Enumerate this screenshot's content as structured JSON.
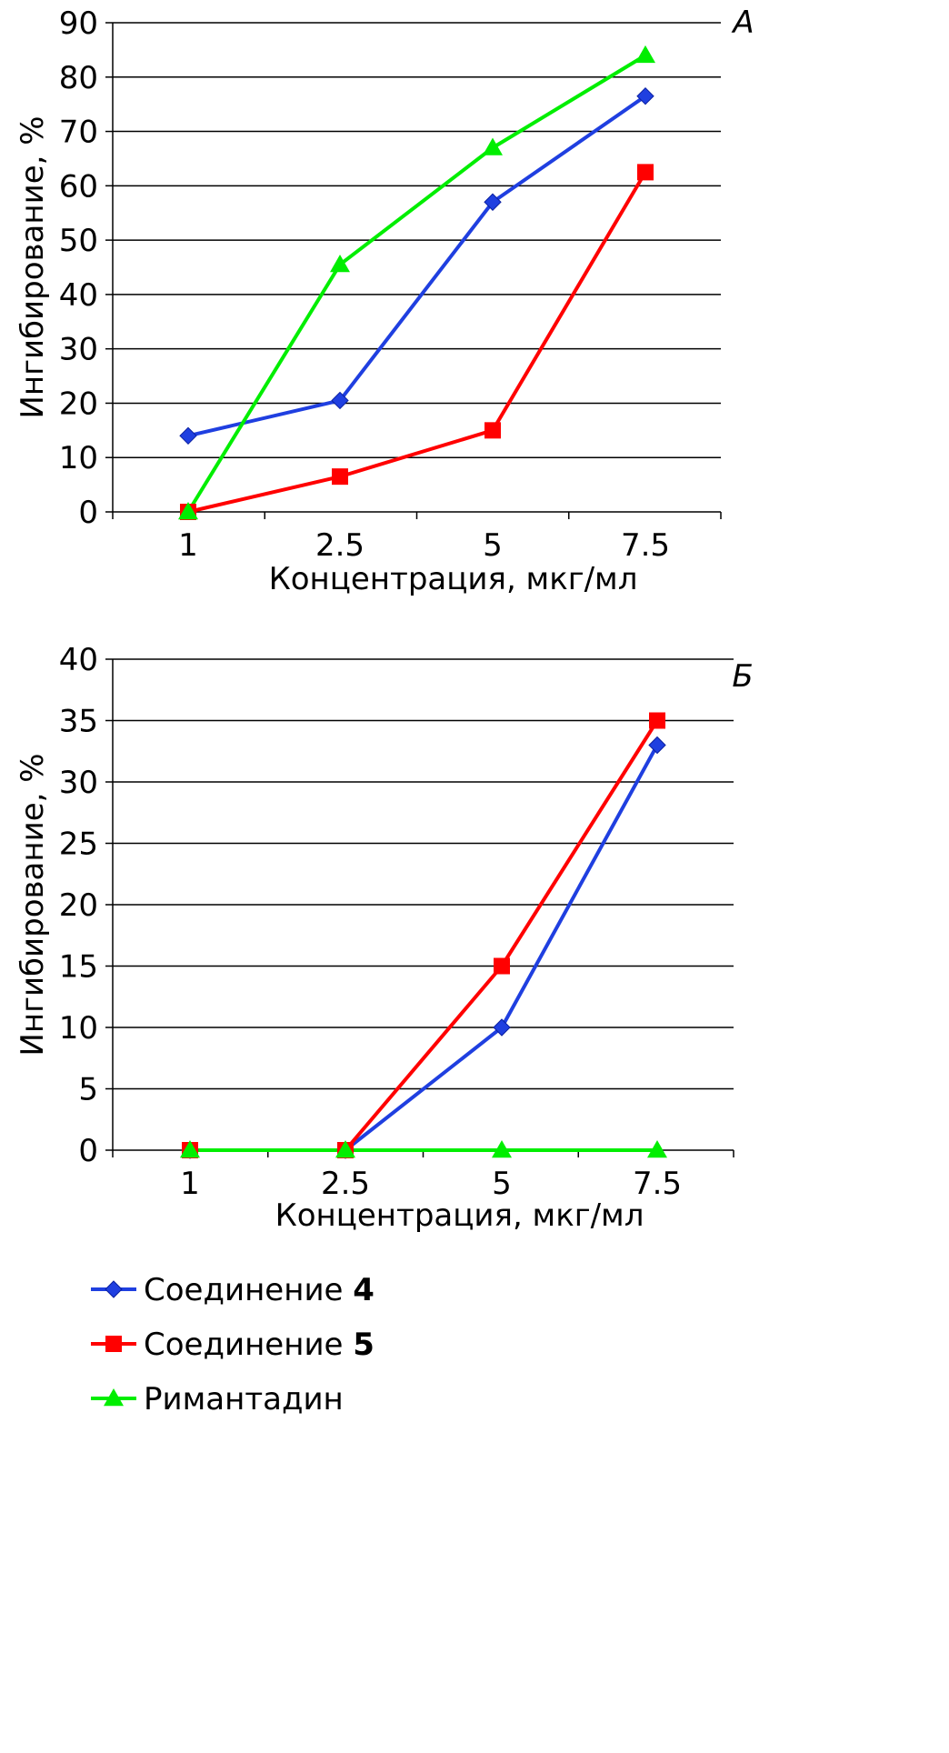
{
  "colors": {
    "compound4": "#1f3fe0",
    "compound5": "#ff0000",
    "rimantadine": "#00ee00",
    "grid": "#000000"
  },
  "legend": [
    {
      "name_prefix": "Соединение ",
      "name_bold": "4",
      "color": "#1f3fe0",
      "marker": "diamond"
    },
    {
      "name_prefix": "Соединение ",
      "name_bold": "5",
      "color": "#ff0000",
      "marker": "square"
    },
    {
      "name_prefix": "Римантадин",
      "name_bold": "",
      "color": "#00ee00",
      "marker": "triangle"
    }
  ],
  "chart_data": [
    {
      "type": "line",
      "panel": "А",
      "categories": [
        "1",
        "2.5",
        "5",
        "7.5"
      ],
      "xlabel": "Концентрация, мкг/мл",
      "ylabel": "Ингибирование, %",
      "ylim": [
        0,
        90
      ],
      "yticks": [
        0,
        10,
        20,
        30,
        40,
        50,
        60,
        70,
        80,
        90
      ],
      "grid": true,
      "series": [
        {
          "name": "Соединение 4",
          "color": "#1f3fe0",
          "marker": "diamond",
          "values": [
            14,
            20.5,
            57,
            76.5
          ]
        },
        {
          "name": "Соединение 5",
          "color": "#ff0000",
          "marker": "square",
          "values": [
            0,
            6.5,
            15,
            62.5
          ]
        },
        {
          "name": "Римантадин",
          "color": "#00ee00",
          "marker": "triangle",
          "values": [
            0,
            45.5,
            67,
            84
          ]
        }
      ]
    },
    {
      "type": "line",
      "panel": "Б",
      "categories": [
        "1",
        "2.5",
        "5",
        "7.5"
      ],
      "xlabel": "Концентрация, мкг/мл",
      "ylabel": "Ингибирование, %",
      "ylim": [
        0,
        40
      ],
      "yticks": [
        0,
        5,
        10,
        15,
        20,
        25,
        30,
        35,
        40
      ],
      "grid": true,
      "series": [
        {
          "name": "Соединение 4",
          "color": "#1f3fe0",
          "marker": "diamond",
          "values": [
            0,
            0,
            10,
            33
          ]
        },
        {
          "name": "Соединение 5",
          "color": "#ff0000",
          "marker": "square",
          "values": [
            0,
            0,
            15,
            35
          ]
        },
        {
          "name": "Римантадин",
          "color": "#00ee00",
          "marker": "triangle",
          "values": [
            0,
            0,
            0,
            0
          ]
        }
      ]
    }
  ]
}
